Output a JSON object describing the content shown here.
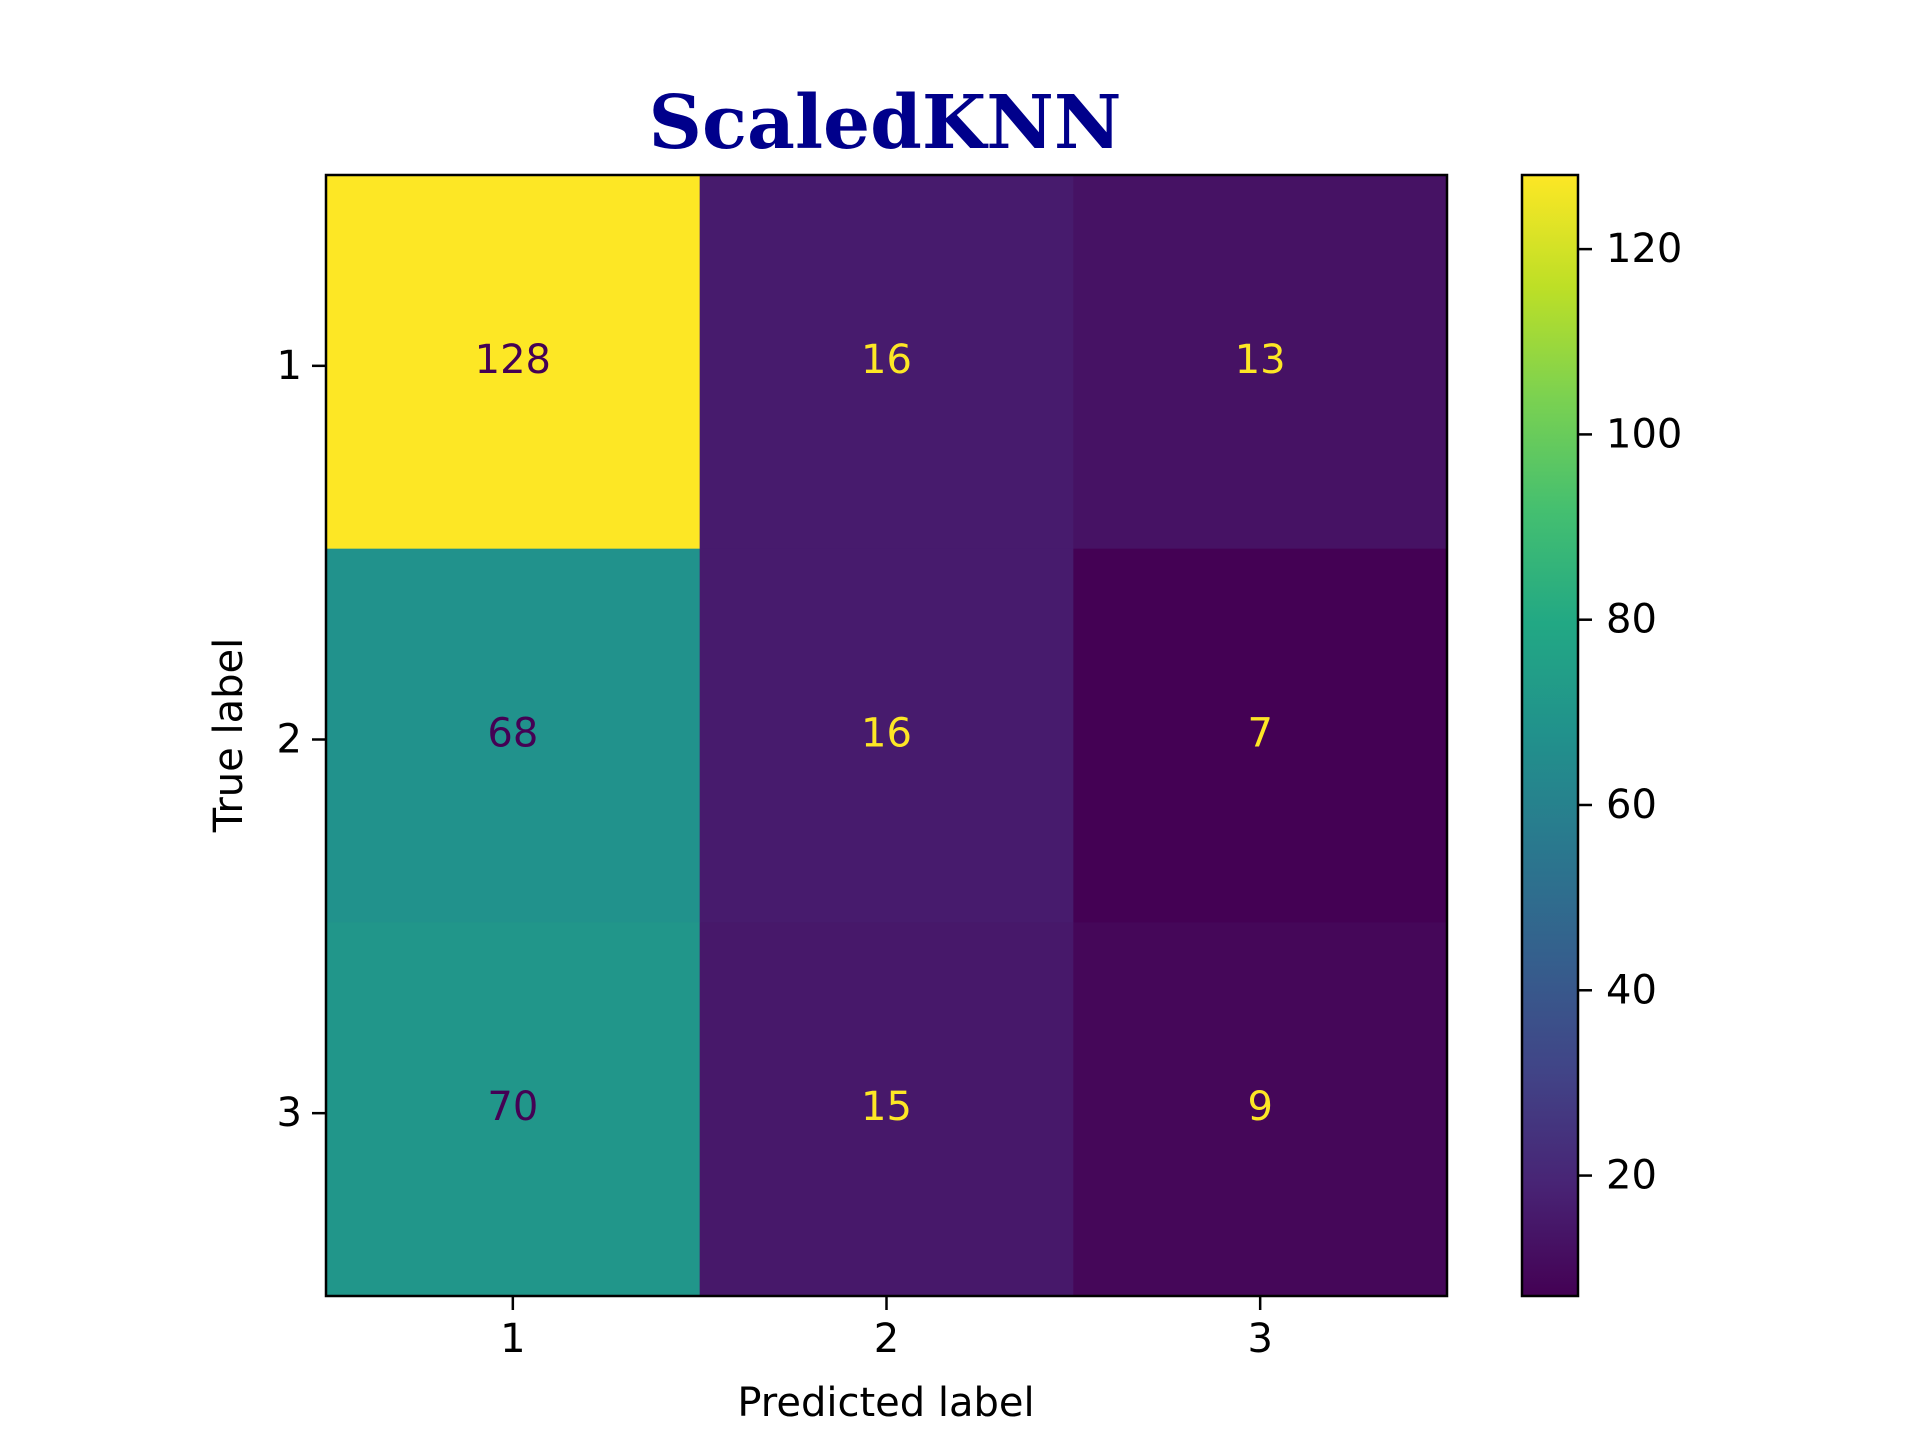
{
  "chart_data": {
    "type": "heatmap",
    "title": "ScaledKNN",
    "title_color": "#00008b",
    "xlabel": "Predicted label",
    "ylabel": "True label",
    "x_categories": [
      "1",
      "2",
      "3"
    ],
    "y_categories": [
      "1",
      "2",
      "3"
    ],
    "matrix": [
      [
        128,
        16,
        13
      ],
      [
        68,
        16,
        7
      ],
      [
        70,
        15,
        9
      ]
    ],
    "colormap": "viridis",
    "colorbar": {
      "range": [
        7,
        128
      ],
      "ticks": [
        20,
        40,
        60,
        80,
        100,
        120
      ],
      "tick_labels": [
        "20",
        "40",
        "60",
        "80",
        "100",
        "120"
      ]
    },
    "grid": false,
    "legend": "colorbar-right"
  }
}
